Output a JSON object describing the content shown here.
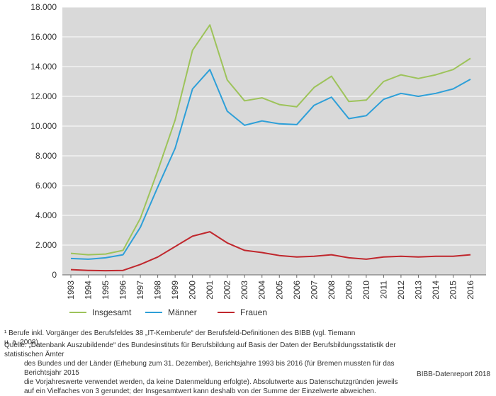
{
  "chart_data": {
    "type": "line",
    "title": "",
    "xlabel": "",
    "ylabel": "",
    "ylim": [
      0,
      18000
    ],
    "grid": true,
    "legend_position": "bottom",
    "x": [
      "1993",
      "1994",
      "1995",
      "1996",
      "1997",
      "1998",
      "1999",
      "2000",
      "2001",
      "2002",
      "2003",
      "2004",
      "2005",
      "2006",
      "2007",
      "2008",
      "2009",
      "2010",
      "2011",
      "2012",
      "2013",
      "2014",
      "2015",
      "2016"
    ],
    "yticks": [
      {
        "value": 0,
        "label": "0"
      },
      {
        "value": 2000,
        "label": "2.000"
      },
      {
        "value": 4000,
        "label": "4.000"
      },
      {
        "value": 6000,
        "label": "6.000"
      },
      {
        "value": 8000,
        "label": "8.000"
      },
      {
        "value": 10000,
        "label": "10.000"
      },
      {
        "value": 12000,
        "label": "12.000"
      },
      {
        "value": 14000,
        "label": "14.000"
      },
      {
        "value": 16000,
        "label": "16.000"
      },
      {
        "value": 18000,
        "label": "18.000"
      }
    ],
    "series": [
      {
        "name": "Insgesamt",
        "color": "#9dc35a",
        "values": [
          1450,
          1350,
          1400,
          1650,
          3800,
          7000,
          10400,
          15100,
          16800,
          13100,
          11700,
          11900,
          11450,
          11300,
          12600,
          13350,
          11650,
          11750,
          13000,
          13450,
          13200,
          13450,
          13800,
          14550
        ]
      },
      {
        "name": "Männer",
        "color": "#2d9fd8",
        "values": [
          1100,
          1050,
          1150,
          1350,
          3200,
          5900,
          8500,
          12500,
          13800,
          11000,
          10050,
          10350,
          10150,
          10100,
          11400,
          11950,
          10500,
          10700,
          11800,
          12200,
          12000,
          12200,
          12500,
          13150
        ]
      },
      {
        "name": "Frauen",
        "color": "#c0272d",
        "values": [
          350,
          300,
          280,
          300,
          700,
          1200,
          1900,
          2600,
          2900,
          2150,
          1650,
          1500,
          1300,
          1200,
          1250,
          1350,
          1150,
          1050,
          1200,
          1250,
          1200,
          1250,
          1250,
          1350
        ]
      }
    ]
  },
  "footnote": "¹ Berufe inkl. Vorgänger des Berufsfeldes 38 „IT-Kernberufe“ der Berufsfeld-Definitionen des BIBB (vgl. Tiemann u. a. 2008).",
  "source_lines": [
    "Quelle: „Datenbank Auszubildende“ des Bundesinstituts für Berufsbildung auf Basis der Daten der Berufsbildungsstatistik der statistischen Ämter",
    "des Bundes und der Länder (Erhebung zum 31. Dezember), Berichtsjahre 1993 bis 2016 (für Bremen mussten für das Berichtsjahr 2015",
    "die Vorjahreswerte verwendet werden, da keine Datenmeldung erfolgte). Absolutwerte aus Datenschutzgründen jeweils",
    "auf ein Vielfaches von 3 gerundet; der Insgesamtwert kann deshalb von der Summe der Einzelwerte abweichen."
  ],
  "credit": "BIBB-Datenreport 2018"
}
